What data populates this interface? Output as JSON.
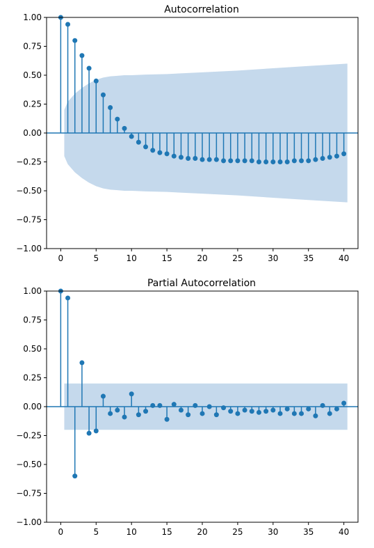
{
  "chart_data": [
    {
      "type": "stem",
      "title": "Autocorrelation",
      "xlabel": "",
      "ylabel": "",
      "xlim": [
        -2,
        42
      ],
      "ylim": [
        -1.0,
        1.0
      ],
      "xticks": [
        "0",
        "5",
        "10",
        "15",
        "20",
        "25",
        "30",
        "35",
        "40"
      ],
      "yticks": [
        "1.00",
        "0.75",
        "0.50",
        "0.25",
        "0.00",
        "−0.25",
        "−0.50",
        "−0.75",
        "−1.00"
      ],
      "x": [
        0,
        1,
        2,
        3,
        4,
        5,
        6,
        7,
        8,
        9,
        10,
        11,
        12,
        13,
        14,
        15,
        16,
        17,
        18,
        19,
        20,
        21,
        22,
        23,
        24,
        25,
        26,
        27,
        28,
        29,
        30,
        31,
        32,
        33,
        34,
        35,
        36,
        37,
        38,
        39,
        40
      ],
      "values": [
        1.0,
        0.94,
        0.8,
        0.67,
        0.56,
        0.45,
        0.33,
        0.22,
        0.12,
        0.04,
        -0.03,
        -0.08,
        -0.12,
        -0.15,
        -0.17,
        -0.18,
        -0.2,
        -0.21,
        -0.22,
        -0.22,
        -0.23,
        -0.23,
        -0.23,
        -0.24,
        -0.24,
        -0.24,
        -0.24,
        -0.24,
        -0.25,
        -0.25,
        -0.25,
        -0.25,
        -0.25,
        -0.24,
        -0.24,
        -0.24,
        -0.23,
        -0.22,
        -0.21,
        -0.2,
        -0.18
      ],
      "confidence_x": [
        0.5,
        1,
        2,
        3,
        4,
        5,
        6,
        7,
        8,
        9,
        10,
        12,
        15,
        20,
        25,
        30,
        35,
        40.5
      ],
      "confidence_upper": [
        0.2,
        0.27,
        0.34,
        0.39,
        0.43,
        0.46,
        0.48,
        0.49,
        0.495,
        0.5,
        0.5,
        0.505,
        0.51,
        0.525,
        0.54,
        0.56,
        0.58,
        0.6
      ],
      "color": "#1f77b4",
      "band_color": "#c5d9ec",
      "grid": false
    },
    {
      "type": "stem",
      "title": "Partial Autocorrelation",
      "xlabel": "",
      "ylabel": "",
      "xlim": [
        -2,
        42
      ],
      "ylim": [
        -1.0,
        1.0
      ],
      "xticks": [
        "0",
        "5",
        "10",
        "15",
        "20",
        "25",
        "30",
        "35",
        "40"
      ],
      "yticks": [
        "1.00",
        "0.75",
        "0.50",
        "0.25",
        "0.00",
        "−0.25",
        "−0.50",
        "−0.75",
        "−1.00"
      ],
      "x": [
        0,
        1,
        2,
        3,
        4,
        5,
        6,
        7,
        8,
        9,
        10,
        11,
        12,
        13,
        14,
        15,
        16,
        17,
        18,
        19,
        20,
        21,
        22,
        23,
        24,
        25,
        26,
        27,
        28,
        29,
        30,
        31,
        32,
        33,
        34,
        35,
        36,
        37,
        38,
        39,
        40
      ],
      "values": [
        1.0,
        0.94,
        -0.6,
        0.38,
        -0.23,
        -0.21,
        0.09,
        -0.06,
        -0.03,
        -0.09,
        0.11,
        -0.07,
        -0.04,
        0.01,
        0.01,
        -0.11,
        0.02,
        -0.03,
        -0.07,
        0.01,
        -0.06,
        0.0,
        -0.07,
        -0.01,
        -0.04,
        -0.06,
        -0.03,
        -0.04,
        -0.05,
        -0.04,
        -0.03,
        -0.06,
        -0.02,
        -0.06,
        -0.06,
        -0.02,
        -0.08,
        0.01,
        -0.06,
        -0.02,
        0.03
      ],
      "confidence_x": [
        0.5,
        40.5
      ],
      "confidence_upper": [
        0.2,
        0.2
      ],
      "color": "#1f77b4",
      "band_color": "#c5d9ec",
      "grid": false
    }
  ]
}
